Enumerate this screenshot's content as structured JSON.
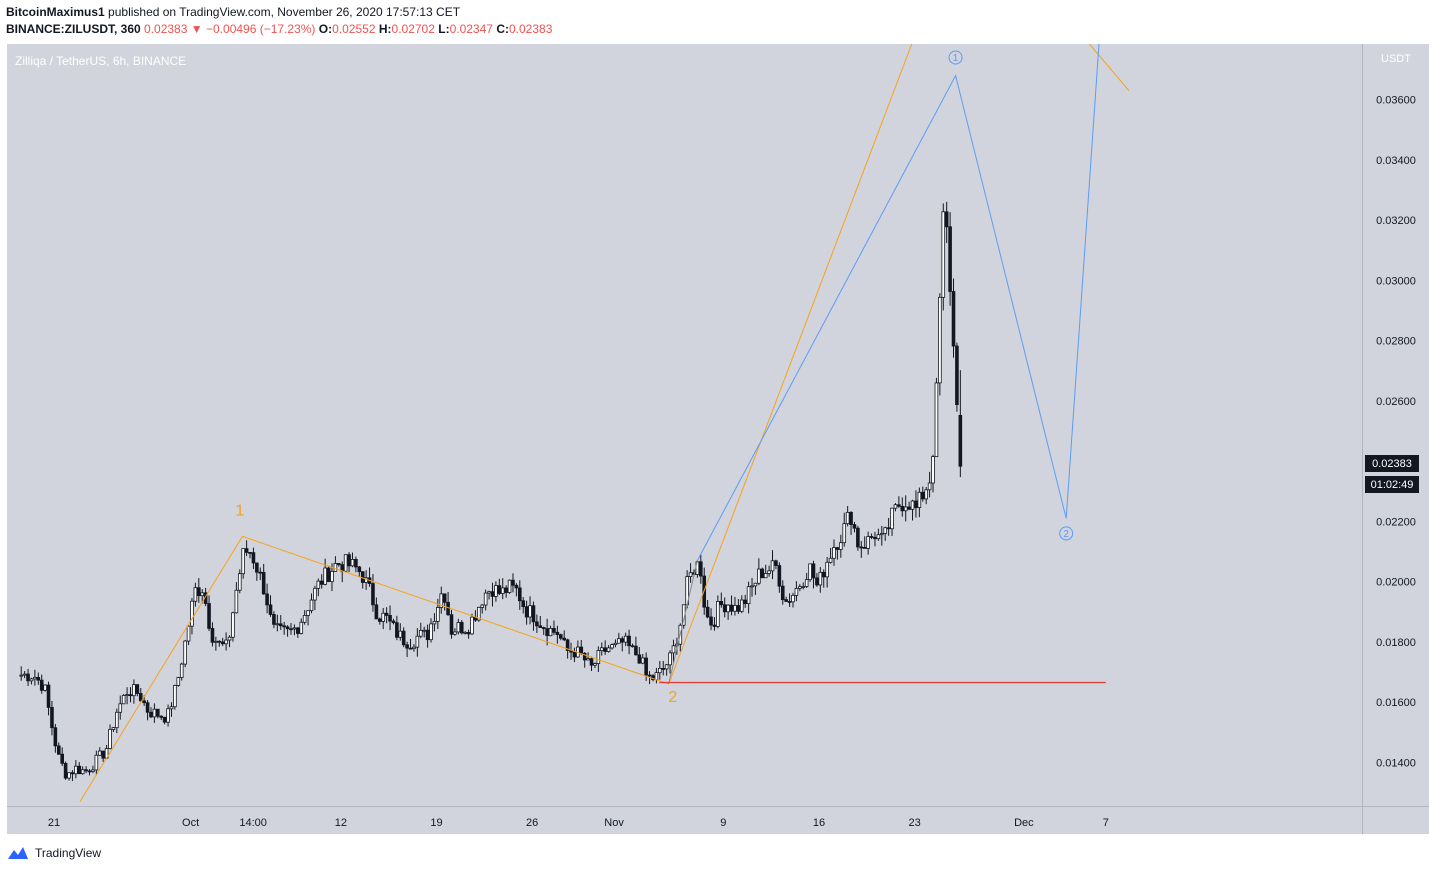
{
  "header": {
    "author": "BitcoinMaximus1",
    "published_text": "published on TradingView.com, November 26, 2020 17:57:13 CET",
    "symbol": "BINANCE:ZILUSDT, 360",
    "last": "0.02383",
    "change_arrow": "▼",
    "change": "−0.00496 (−17.23%)",
    "o_label": "O:",
    "o": "0.02552",
    "h_label": "H:",
    "h": "0.02702",
    "l_label": "L:",
    "l": "0.02347",
    "c_label": "C:",
    "c": "0.02383"
  },
  "chart_data": {
    "type": "candlestick",
    "title": "Zilliqa / TetherUS, 6h, BINANCE",
    "y_unit": "USDT",
    "ylim": [
      0.01255,
      0.03785
    ],
    "y_ticks": [
      0.014,
      0.016,
      0.018,
      0.02,
      0.022,
      0.024,
      0.026,
      0.028,
      0.03,
      0.032,
      0.034,
      0.036
    ],
    "y_tick_labels": [
      "0.01400",
      "0.01600",
      "0.01800",
      "0.02000",
      "0.02200",
      "0.02400",
      "0.02600",
      "0.02800",
      "0.03000",
      "0.03200",
      "0.03400",
      "0.03600"
    ],
    "x_tick_labels": [
      {
        "label": "21",
        "day": 21
      },
      {
        "label": "Oct",
        "day": 31
      },
      {
        "label": "14:00",
        "day": 35.58
      },
      {
        "label": "12",
        "day": 42
      },
      {
        "label": "19",
        "day": 49
      },
      {
        "label": "26",
        "day": 56
      },
      {
        "label": "Nov",
        "day": 62
      },
      {
        "label": "9",
        "day": 70
      },
      {
        "label": "16",
        "day": 77
      },
      {
        "label": "23",
        "day": 84
      },
      {
        "label": "Dec",
        "day": 92
      },
      {
        "label": "7",
        "day": 98
      }
    ],
    "x_axis_note": "x values are days counted from Sep 1 2020 (Oct 1 = 31, Nov 1 = 62, Dec 1 = 92)",
    "price_path": [
      [
        18.6,
        0.0169
      ],
      [
        19.5,
        0.0169
      ],
      [
        20.3,
        0.0165
      ],
      [
        20.8,
        0.0153
      ],
      [
        21.3,
        0.0142
      ],
      [
        21.9,
        0.0136
      ],
      [
        22.6,
        0.0138
      ],
      [
        23.3,
        0.0137
      ],
      [
        24.0,
        0.014
      ],
      [
        24.8,
        0.0144
      ],
      [
        25.6,
        0.0157
      ],
      [
        26.4,
        0.0164
      ],
      [
        27.2,
        0.0163
      ],
      [
        27.9,
        0.0157
      ],
      [
        28.6,
        0.0156
      ],
      [
        29.3,
        0.0155
      ],
      [
        30.0,
        0.0166
      ],
      [
        30.7,
        0.0182
      ],
      [
        31.3,
        0.0197
      ],
      [
        31.9,
        0.0198
      ],
      [
        32.5,
        0.0183
      ],
      [
        33.1,
        0.0179
      ],
      [
        33.7,
        0.0178
      ],
      [
        34.3,
        0.0196
      ],
      [
        34.9,
        0.021
      ],
      [
        35.4,
        0.021
      ],
      [
        36.0,
        0.0203
      ],
      [
        36.5,
        0.0196
      ],
      [
        37.0,
        0.0184
      ],
      [
        37.6,
        0.0183
      ],
      [
        38.2,
        0.0183
      ],
      [
        38.8,
        0.0185
      ],
      [
        39.4,
        0.019
      ],
      [
        39.9,
        0.0195
      ],
      [
        40.5,
        0.02
      ],
      [
        41.1,
        0.0203
      ],
      [
        41.7,
        0.0206
      ],
      [
        42.3,
        0.0206
      ],
      [
        42.9,
        0.0205
      ],
      [
        43.5,
        0.0203
      ],
      [
        44.1,
        0.0197
      ],
      [
        44.7,
        0.0189
      ],
      [
        45.3,
        0.0188
      ],
      [
        45.9,
        0.0184
      ],
      [
        46.5,
        0.0181
      ],
      [
        47.1,
        0.018
      ],
      [
        47.7,
        0.0182
      ],
      [
        48.3,
        0.0182
      ],
      [
        48.9,
        0.019
      ],
      [
        49.5,
        0.0198
      ],
      [
        50.1,
        0.0184
      ],
      [
        50.7,
        0.0185
      ],
      [
        51.3,
        0.0185
      ],
      [
        51.9,
        0.019
      ],
      [
        52.5,
        0.0196
      ],
      [
        53.1,
        0.0198
      ],
      [
        53.7,
        0.0196
      ],
      [
        54.3,
        0.0198
      ],
      [
        54.9,
        0.0197
      ],
      [
        55.5,
        0.0191
      ],
      [
        56.1,
        0.0189
      ],
      [
        56.7,
        0.0186
      ],
      [
        57.3,
        0.0184
      ],
      [
        57.9,
        0.0183
      ],
      [
        58.5,
        0.0177
      ],
      [
        59.1,
        0.0177
      ],
      [
        59.7,
        0.0175
      ],
      [
        60.3,
        0.0171
      ],
      [
        60.9,
        0.0175
      ],
      [
        61.5,
        0.0178
      ],
      [
        62.1,
        0.0178
      ],
      [
        62.7,
        0.018
      ],
      [
        63.3,
        0.0177
      ],
      [
        63.9,
        0.0175
      ],
      [
        64.4,
        0.0168
      ],
      [
        65.0,
        0.0168
      ],
      [
        65.6,
        0.0171
      ],
      [
        66.2,
        0.0175
      ],
      [
        66.8,
        0.0185
      ],
      [
        67.4,
        0.02
      ],
      [
        67.9,
        0.0205
      ],
      [
        68.3,
        0.0206
      ],
      [
        68.7,
        0.0189
      ],
      [
        69.2,
        0.0186
      ],
      [
        69.7,
        0.0192
      ],
      [
        70.3,
        0.0193
      ],
      [
        70.9,
        0.0191
      ],
      [
        71.5,
        0.0193
      ],
      [
        72.1,
        0.0198
      ],
      [
        72.7,
        0.0203
      ],
      [
        73.3,
        0.0204
      ],
      [
        73.9,
        0.0205
      ],
      [
        74.5,
        0.0193
      ],
      [
        75.1,
        0.0196
      ],
      [
        75.7,
        0.02
      ],
      [
        76.3,
        0.0205
      ],
      [
        76.9,
        0.0198
      ],
      [
        77.5,
        0.0206
      ],
      [
        78.1,
        0.0212
      ],
      [
        78.7,
        0.0216
      ],
      [
        79.3,
        0.0223
      ],
      [
        79.9,
        0.0212
      ],
      [
        80.5,
        0.0213
      ],
      [
        81.1,
        0.0216
      ],
      [
        81.7,
        0.0213
      ],
      [
        82.3,
        0.0221
      ],
      [
        82.9,
        0.0226
      ],
      [
        83.5,
        0.0227
      ],
      [
        84.1,
        0.0224
      ],
      [
        84.7,
        0.023
      ],
      [
        85.1,
        0.0234
      ],
      [
        85.5,
        0.025
      ],
      [
        85.8,
        0.0288
      ],
      [
        86.1,
        0.032
      ],
      [
        86.4,
        0.0315
      ],
      [
        86.7,
        0.029
      ],
      [
        87.0,
        0.0265
      ],
      [
        87.3,
        0.0255
      ],
      [
        87.5,
        0.0238
      ]
    ],
    "last_candle": {
      "open": 0.02552,
      "high": 0.02702,
      "low": 0.02347,
      "close": 0.02383
    },
    "last_price_label": "0.02383",
    "countdown_label": "01:02:49",
    "annotations": {
      "orange_wave": [
        [
          22.9,
          0.0127
        ],
        [
          34.8,
          0.0215
        ],
        [
          66.0,
          0.0166
        ],
        [
          83.8,
          0.04
        ]
      ],
      "orange_wave_cont": [
        [
          96.8,
          0.04
        ],
        [
          99.7,
          0.0363
        ]
      ],
      "blue_projection": [
        [
          68.1,
          0.0207
        ],
        [
          87.0,
          0.0368
        ],
        [
          95.1,
          0.0221
        ],
        [
          97.5,
          0.04
        ]
      ],
      "grey_segment": [
        [
          66.0,
          0.0166
        ],
        [
          68.1,
          0.0207
        ]
      ],
      "support_line": {
        "y": 0.01665,
        "x_from": 65.3,
        "x_to": 98.0,
        "color": "#e53935"
      },
      "labels": [
        {
          "text": "1",
          "x": 34.6,
          "y": 0.0222,
          "style": "orange"
        },
        {
          "text": "2",
          "x": 66.3,
          "y": 0.016,
          "style": "orange"
        },
        {
          "text": "1",
          "x": 87.0,
          "y": 0.0374,
          "style": "blue-circle"
        },
        {
          "text": "2",
          "x": 95.1,
          "y": 0.0216,
          "style": "blue-circle"
        }
      ]
    },
    "colors": {
      "background": "#d1d4dc",
      "candle": "#131722",
      "orange": "#f7a21b",
      "blue": "#5b9cf6",
      "grey": "#8a8a8a",
      "support": "#e53935"
    }
  },
  "footer": {
    "logo_text": "TradingView"
  }
}
